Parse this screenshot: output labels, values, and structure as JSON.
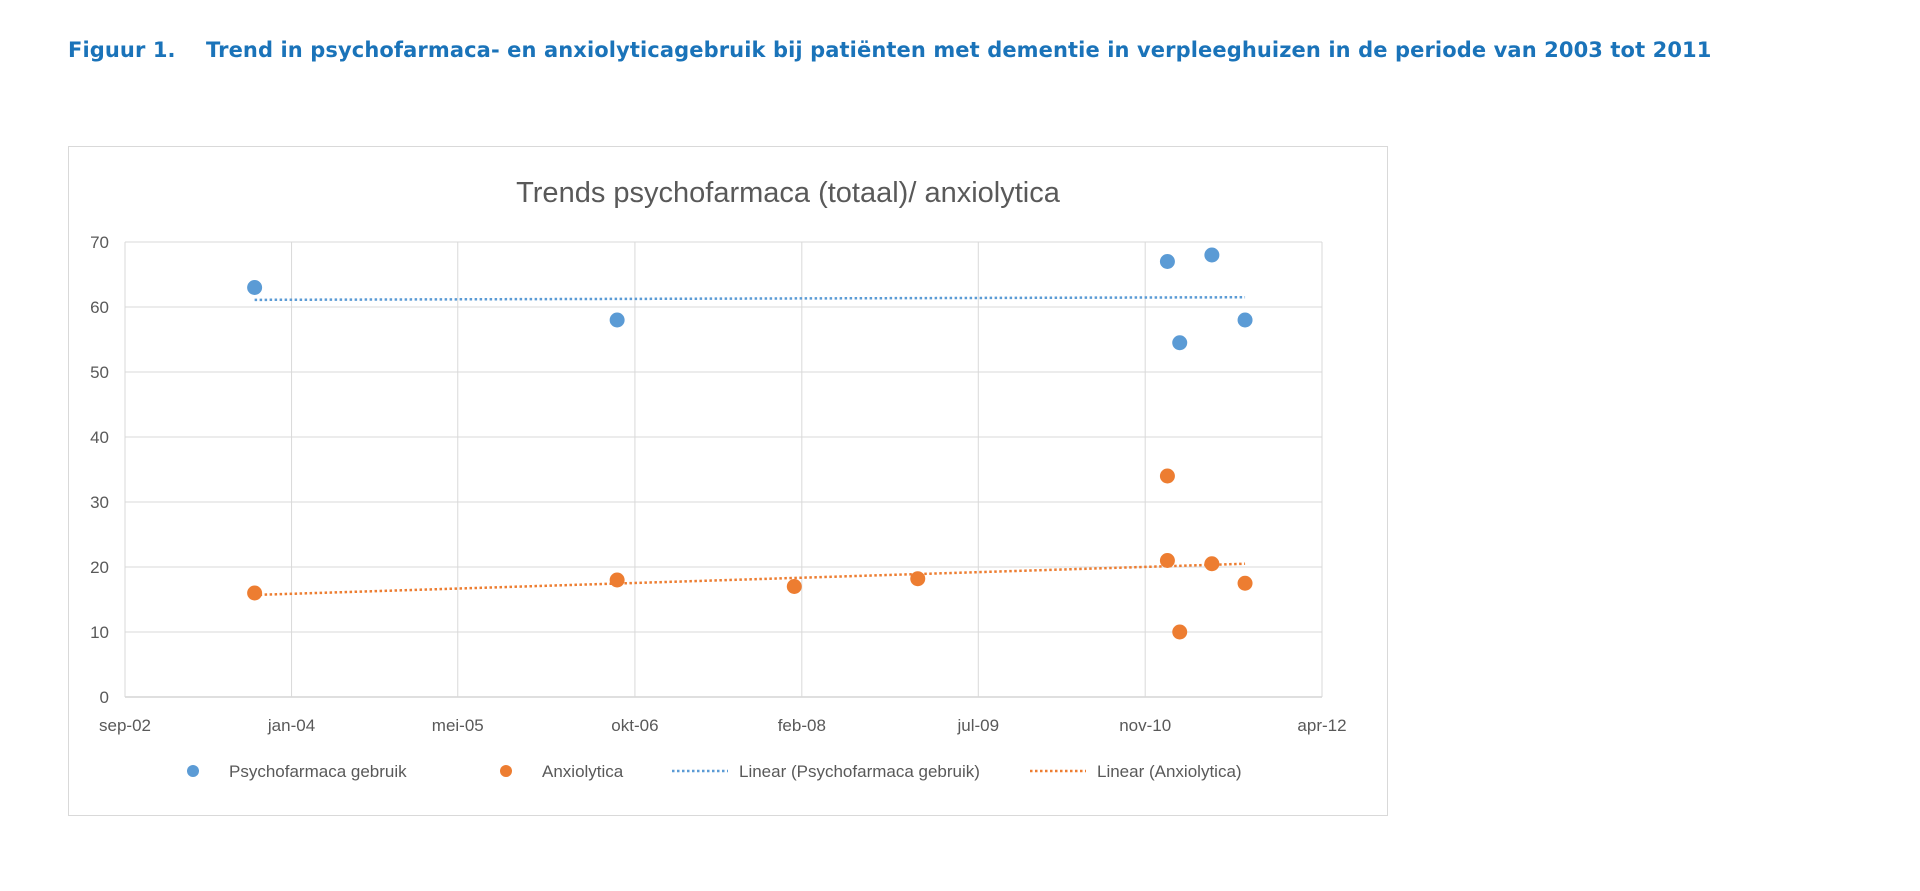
{
  "caption": {
    "label": "Figuur 1.",
    "text": "Trend in psychofarmaca- en anxiolyticagebruik bij patiënten met dementie in verpleeghuizen in de periode van 2003 tot 2011"
  },
  "chart_data": {
    "type": "scatter",
    "title": "Trends psychofarmaca (totaal)/ anxiolytica",
    "xlabel": "",
    "ylabel": "",
    "x_axis": {
      "type": "date",
      "range": [
        "2002-09-01",
        "2012-04-01"
      ],
      "tick_values": [
        "2002-09-01",
        "2004-01-01",
        "2005-05-01",
        "2006-10-01",
        "2008-02-01",
        "2009-07-01",
        "2010-11-01",
        "2012-04-01"
      ],
      "tick_labels": [
        "sep-02",
        "jan-04",
        "mei-05",
        "okt-06",
        "feb-08",
        "jul-09",
        "nov-10",
        "apr-12"
      ]
    },
    "y_axis": {
      "range": [
        0,
        70
      ],
      "ticks": [
        0,
        10,
        20,
        30,
        40,
        50,
        60,
        70
      ]
    },
    "grid": true,
    "legend_position": "bottom",
    "series": [
      {
        "name": "Psychofarmaca gebruik",
        "kind": "points",
        "color": "#5b9bd5",
        "points": [
          {
            "x": "2003-09-15",
            "y": 63
          },
          {
            "x": "2006-08-10",
            "y": 58
          },
          {
            "x": "2011-01-05",
            "y": 67
          },
          {
            "x": "2011-02-10",
            "y": 54.5
          },
          {
            "x": "2011-05-15",
            "y": 68
          },
          {
            "x": "2011-08-20",
            "y": 58
          }
        ]
      },
      {
        "name": "Anxiolytica",
        "kind": "points",
        "color": "#ed7d31",
        "points": [
          {
            "x": "2003-09-15",
            "y": 16
          },
          {
            "x": "2006-08-10",
            "y": 18
          },
          {
            "x": "2008-01-10",
            "y": 17
          },
          {
            "x": "2009-01-05",
            "y": 18.2
          },
          {
            "x": "2011-01-05",
            "y": 34
          },
          {
            "x": "2011-01-05",
            "y": 21
          },
          {
            "x": "2011-02-10",
            "y": 10
          },
          {
            "x": "2011-05-15",
            "y": 20.5
          },
          {
            "x": "2011-08-20",
            "y": 17.5
          }
        ]
      },
      {
        "name": "Linear (Psychofarmaca gebruik)",
        "kind": "trendline",
        "color": "#5b9bd5",
        "points": [
          {
            "x": "2003-09-15",
            "y": 61.1
          },
          {
            "x": "2011-08-20",
            "y": 61.5
          }
        ]
      },
      {
        "name": "Linear (Anxiolytica)",
        "kind": "trendline",
        "color": "#ed7d31",
        "points": [
          {
            "x": "2003-09-15",
            "y": 15.7
          },
          {
            "x": "2011-08-20",
            "y": 20.5
          }
        ]
      }
    ]
  }
}
